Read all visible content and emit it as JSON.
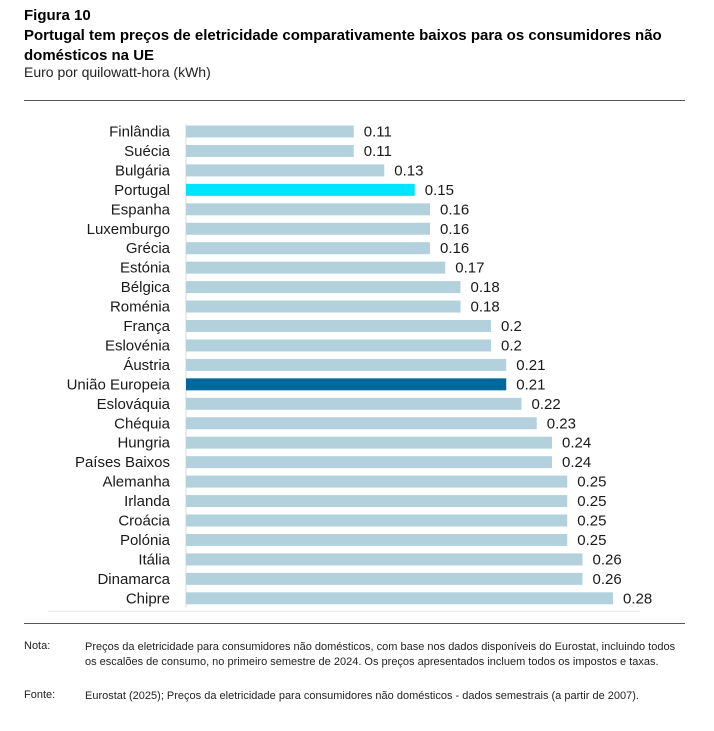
{
  "figure": {
    "label": "Figura 10",
    "title": "Portugal tem preços de eletricidade comparativamente baixos para os consumidores não domésticos na UE",
    "subtitle": "Euro por quilowatt-hora (kWh)"
  },
  "notes": {
    "nota_label": "Nota:",
    "nota_text": "Preços da eletricidade para consumidores não domésticos, com base nos dados disponíveis do Eurostat, incluindo todos os escalões de consumo, no primeiro semestre de 2024. Os preços apresentados incluem todos os impostos e taxas.",
    "fonte_label": "Fonte:",
    "fonte_text": "Eurostat (2025); Preços da eletricidade para consumidores não domésticos - dados semestrais (a partir de 2007)."
  },
  "colors": {
    "default_bar": "#b3d1dd",
    "portugal_bar": "#00e5ff",
    "eu_bar": "#00689a"
  },
  "chart_data": {
    "type": "bar",
    "orientation": "horizontal",
    "title": "Portugal tem preços de eletricidade comparativamente baixos para os consumidores não domésticos na UE",
    "subtitle": "Euro por quilowatt-hora (kWh)",
    "xlim": [
      0,
      0.3
    ],
    "grid": false,
    "categories": [
      "Finlândia",
      "Suécia",
      "Bulgária",
      "Portugal",
      "Espanha",
      "Luxemburgo",
      "Grécia",
      "Estónia",
      "Bélgica",
      "Roménia",
      "França",
      "Eslovénia",
      "Áustria",
      "União Europeia",
      "Eslováquia",
      "Chéquia",
      "Hungria",
      "Países Baixos",
      "Alemanha",
      "Irlanda",
      "Croácia",
      "Polónia",
      "Itália",
      "Dinamarca",
      "Chipre"
    ],
    "values": [
      0.11,
      0.11,
      0.13,
      0.15,
      0.16,
      0.16,
      0.16,
      0.17,
      0.18,
      0.18,
      0.2,
      0.2,
      0.21,
      0.21,
      0.22,
      0.23,
      0.24,
      0.24,
      0.25,
      0.25,
      0.25,
      0.25,
      0.26,
      0.26,
      0.28
    ],
    "value_labels": [
      "0.11",
      "0.11",
      "0.13",
      "0.15",
      "0.16",
      "0.16",
      "0.16",
      "0.17",
      "0.18",
      "0.18",
      "0.2",
      "0.2",
      "0.21",
      "0.21",
      "0.22",
      "0.23",
      "0.24",
      "0.24",
      "0.25",
      "0.25",
      "0.25",
      "0.25",
      "0.26",
      "0.26",
      "0.28"
    ],
    "highlight": {
      "Portugal": "#00e5ff",
      "União Europeia": "#00689a"
    }
  }
}
